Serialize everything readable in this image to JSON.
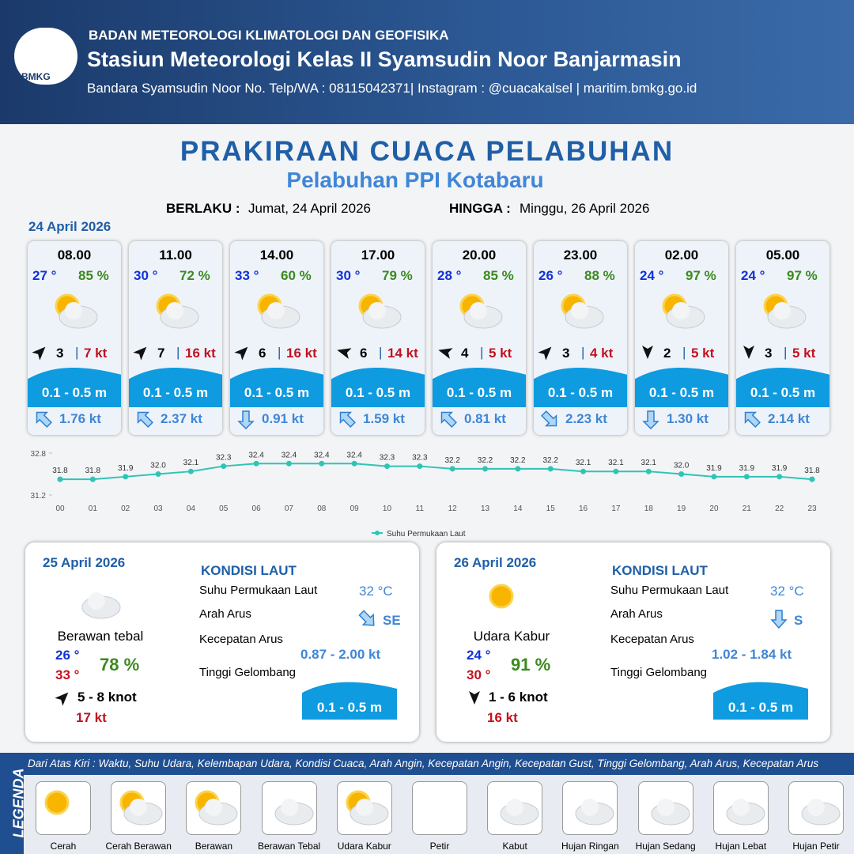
{
  "header": {
    "logo": "BMKG",
    "org": "BADAN METEOROLOGI KLIMATOLOGI DAN GEOFISIKA",
    "station": "Stasiun Meteorologi Kelas II Syamsudin Noor Banjarmasin",
    "contact": "Bandara Syamsudin Noor No. Telp/WA : 08115042371| Instagram : @cuacakalsel | maritim.bmkg.go.id"
  },
  "title": "PRAKIRAAN CUACA PELABUHAN",
  "subtitle": "Pelabuhan PPI Kotabaru",
  "validity": {
    "from_label": "BERLAKU :",
    "from": "Jumat, 24 April 2026",
    "until_label": "HINGGA :",
    "until": "Minggu, 26 April 2026"
  },
  "day1": {
    "date": "24 April 2026",
    "slots": [
      {
        "time": "08.00",
        "temp": "27 °",
        "humidity": "85 %",
        "wind": "3",
        "gust": "7 kt",
        "wave": "0.1 - 0.5 m",
        "current": "1.76 kt"
      },
      {
        "time": "11.00",
        "temp": "30 °",
        "humidity": "72 %",
        "wind": "7",
        "gust": "16 kt",
        "wave": "0.1 - 0.5 m",
        "current": "2.37 kt"
      },
      {
        "time": "14.00",
        "temp": "33 °",
        "humidity": "60 %",
        "wind": "6",
        "gust": "16 kt",
        "wave": "0.1 - 0.5 m",
        "current": "0.91 kt"
      },
      {
        "time": "17.00",
        "temp": "30 °",
        "humidity": "79 %",
        "wind": "6",
        "gust": "14 kt",
        "wave": "0.1 - 0.5 m",
        "current": "1.59 kt"
      },
      {
        "time": "20.00",
        "temp": "28 °",
        "humidity": "85 %",
        "wind": "4",
        "gust": "5 kt",
        "wave": "0.1 - 0.5 m",
        "current": "0.81 kt"
      },
      {
        "time": "23.00",
        "temp": "26 °",
        "humidity": "88 %",
        "wind": "3",
        "gust": "4 kt",
        "wave": "0.1 - 0.5 m",
        "current": "2.23 kt"
      },
      {
        "time": "02.00",
        "temp": "24 °",
        "humidity": "97 %",
        "wind": "2",
        "gust": "5 kt",
        "wave": "0.1 - 0.5 m",
        "current": "1.30 kt"
      },
      {
        "time": "05.00",
        "temp": "24 °",
        "humidity": "97 %",
        "wind": "3",
        "gust": "5 kt",
        "wave": "0.1 - 0.5 m",
        "current": "2.14 kt"
      }
    ]
  },
  "chart_data": {
    "type": "line",
    "categories": [
      "00",
      "01",
      "02",
      "03",
      "04",
      "05",
      "06",
      "07",
      "08",
      "09",
      "10",
      "11",
      "12",
      "13",
      "14",
      "15",
      "16",
      "17",
      "18",
      "19",
      "20",
      "21",
      "22",
      "23"
    ],
    "series": [
      {
        "name": "Suhu Permukaan Laut",
        "color": "#2ec4b6",
        "values": [
          31.8,
          31.8,
          31.9,
          32.0,
          32.1,
          32.3,
          32.4,
          32.4,
          32.4,
          32.4,
          32.3,
          32.3,
          32.2,
          32.2,
          32.2,
          32.2,
          32.1,
          32.1,
          32.1,
          32.0,
          31.9,
          31.9,
          31.9,
          31.8
        ],
        "value_labels": [
          "31.8",
          "31.8",
          "31.9",
          "32.0",
          "32.1",
          "32.3",
          "32.4",
          "32.4",
          "32.4",
          "32.4",
          "32.3",
          "32.3",
          "32.2",
          "32.2",
          "32.2",
          "32.2",
          "32.1",
          "32.1",
          "32.1",
          "32.0",
          "31.9",
          "31.9",
          "31.9",
          "31.8"
        ]
      }
    ],
    "ylim": [
      31.2,
      32.8
    ],
    "yticks": [
      31.2,
      32.8
    ],
    "legend": "bottom"
  },
  "days": [
    {
      "date": "25 April 2026",
      "condition": "Berawan tebal",
      "temp_min": "26 °",
      "temp_max": "33 °",
      "humidity": "78 %",
      "wind": "5  - 8 knot",
      "gust": "17 kt",
      "sea_title": "KONDISI LAUT",
      "sea": [
        {
          "label": "Suhu Permukaan Laut",
          "value": "32 °C"
        },
        {
          "label": "Arah Arus",
          "value": "SE"
        },
        {
          "label": "Kecepatan Arus",
          "value": "0.87 - 2.00 kt"
        },
        {
          "label": "Tinggi Gelombang",
          "value": "0.1 - 0.5 m"
        }
      ]
    },
    {
      "date": "26 April 2026",
      "condition": "Udara Kabur",
      "temp_min": "24 °",
      "temp_max": "30 °",
      "humidity": "91 %",
      "wind": "1  - 6 knot",
      "gust": "16 kt",
      "sea_title": "KONDISI LAUT",
      "sea": [
        {
          "label": "Suhu Permukaan Laut",
          "value": "32 °C"
        },
        {
          "label": "Arah Arus",
          "value": "S"
        },
        {
          "label": "Kecepatan Arus",
          "value": "1.02 - 1.84 kt"
        },
        {
          "label": "Tinggi Gelombang",
          "value": "0.1 - 0.5 m"
        }
      ]
    }
  ],
  "legend": {
    "title": "LEGENDA",
    "description": "Dari Atas Kiri : Waktu, Suhu Udara, Kelembapan Udara, Kondisi Cuaca, Arah Angin, Kecepatan Angin, Kecepatan Gust, Tinggi Gelombang, Arah Arus, Kecepatan Arus",
    "items": [
      "Cerah",
      "Cerah Berawan",
      "Berawan",
      "Berawan Tebal",
      "Udara Kabur",
      "Petir",
      "Kabut",
      "Hujan Ringan",
      "Hujan Sedang",
      "Hujan Lebat",
      "Hujan Petir"
    ]
  }
}
